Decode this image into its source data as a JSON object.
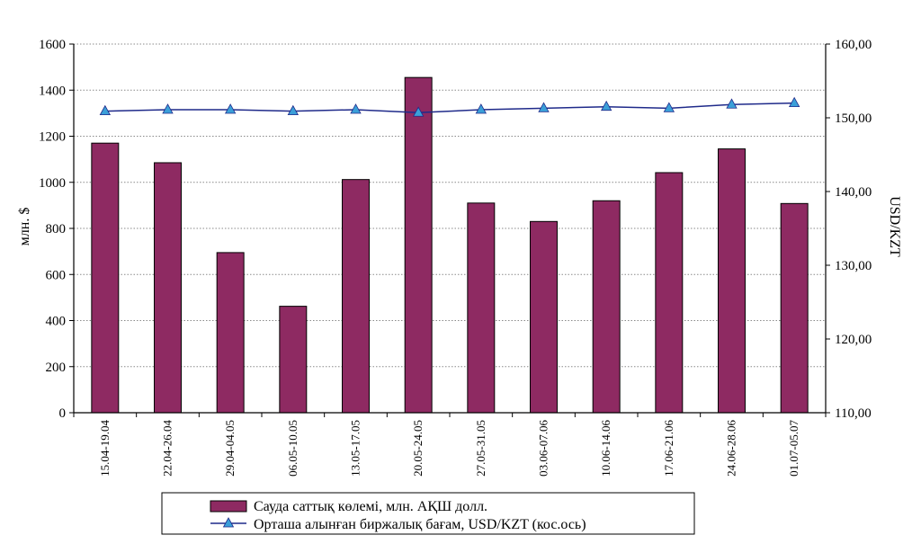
{
  "chart_data": {
    "type": "bar+line",
    "title": "",
    "categories": [
      "15.04-19.04",
      "22.04-26.04",
      "29.04-04.05",
      "06.05-10.05",
      "13.05-17.05",
      "20.05-24.05",
      "27.05-31.05",
      "03.06-07.06",
      "10.06-14.06",
      "17.06-21.06",
      "24.06-28.06",
      "01.07-05.07"
    ],
    "series": [
      {
        "name": "Сауда саттық көлемі, млн. АҚШ долл.",
        "type": "bar",
        "axis": "left",
        "color": "#8e2a62",
        "values": [
          1170,
          1085,
          695,
          462,
          1012,
          1455,
          910,
          830,
          920,
          1042,
          1145,
          908
        ]
      },
      {
        "name": "Орташа алынған  биржалық бағам, USD/KZT (кос.ось)",
        "type": "line",
        "axis": "right",
        "color": "#1f2a8a",
        "marker_color": "#3b9fd8",
        "values": [
          150.9,
          151.1,
          151.1,
          150.9,
          151.1,
          150.7,
          151.1,
          151.3,
          151.5,
          151.3,
          151.8,
          152.0
        ]
      }
    ],
    "ylabel": "млн. $",
    "ylim": [
      0,
      1600
    ],
    "yticks": [
      "0",
      "200",
      "400",
      "600",
      "800",
      "1000",
      "1200",
      "1400",
      "1600"
    ],
    "y2label": "USD/KZT",
    "y2lim": [
      110,
      160
    ],
    "y2ticks": [
      "110,00",
      "120,00",
      "130,00",
      "140,00",
      "150,00",
      "160,00"
    ],
    "grid": true,
    "legend_position": "bottom"
  }
}
